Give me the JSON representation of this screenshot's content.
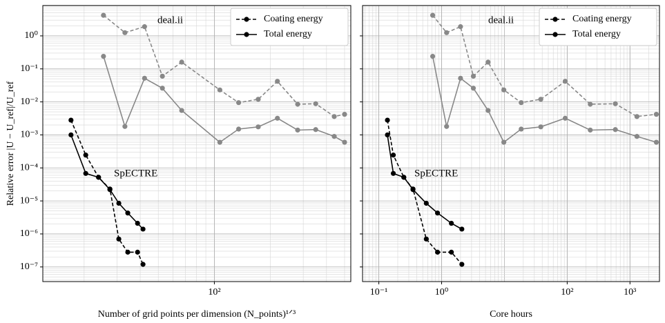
{
  "chart_data": [
    {
      "type": "line",
      "xscale": "log",
      "yscale": "log",
      "grid": true,
      "minor_grid": true,
      "legend": "upper right",
      "xlabel": "Number of grid points per dimension (N_points)¹ᐟ³",
      "ylabel": "Relative error |U − U_ref|/U_ref",
      "xlim": [
        12,
        540
      ],
      "ylim": [
        3.6e-08,
        8.3
      ],
      "xticks": [
        {
          "value": 100,
          "label": "10²"
        }
      ],
      "yticks": [
        {
          "value": 1e-07,
          "label": "10⁻⁷"
        },
        {
          "value": 1e-06,
          "label": "10⁻⁶"
        },
        {
          "value": 1e-05,
          "label": "10⁻⁵"
        },
        {
          "value": 0.0001,
          "label": "10⁻⁴"
        },
        {
          "value": 0.001,
          "label": "10⁻³"
        },
        {
          "value": 0.01,
          "label": "10⁻²"
        },
        {
          "value": 0.1,
          "label": "10⁻¹"
        },
        {
          "value": 1,
          "label": "10⁰"
        }
      ],
      "annotations": [
        "deal.ii",
        "SpECTRE"
      ],
      "series": [
        {
          "color": "#888888",
          "dashed": true,
          "x": [
            25.4,
            33.1,
            42.2,
            52.6,
            66.8,
            107,
            135,
            172,
            218,
            280,
            350,
            440,
            500
          ],
          "values": [
            4.2,
            1.25,
            1.9,
            0.06,
            0.16,
            0.023,
            0.0095,
            0.012,
            0.042,
            0.0085,
            0.0088,
            0.0036,
            0.0042
          ]
        },
        {
          "color": "#888888",
          "dashed": false,
          "x": [
            25.4,
            33.1,
            42.2,
            52.6,
            66.8,
            107,
            135,
            172,
            218,
            280,
            350,
            440,
            500
          ],
          "values": [
            0.24,
            0.0018,
            0.052,
            0.026,
            0.0055,
            0.0006,
            0.0015,
            0.00175,
            0.0032,
            0.0014,
            0.00145,
            0.0009,
            0.0006
          ]
        },
        {
          "name": "Coating energy",
          "color": "#000000",
          "dashed": true,
          "x": [
            17,
            20.4,
            23.9,
            27.5,
            30.7,
            34.3,
            38.7,
            41.4
          ],
          "values": [
            0.0028,
            0.000245,
            5.2e-05,
            2.3e-05,
            7e-07,
            2.8e-07,
            2.8e-07,
            1.2e-07
          ]
        },
        {
          "name": "Total energy",
          "color": "#000000",
          "dashed": false,
          "x": [
            17,
            20.4,
            23.9,
            27.5,
            30.7,
            34.3,
            38.7,
            41.4
          ],
          "values": [
            0.001,
            6.8e-05,
            5.2e-05,
            2.2e-05,
            8.5e-06,
            4.3e-06,
            2.1e-06,
            1.4e-06
          ]
        }
      ]
    },
    {
      "type": "line",
      "xscale": "log",
      "yscale": "log",
      "grid": true,
      "minor_grid": true,
      "legend": "upper right",
      "sharey": true,
      "xlabel": "Core hours",
      "xlim": [
        0.055,
        2950
      ],
      "ylim": [
        3.6e-08,
        8.3
      ],
      "xticks": [
        {
          "value": 0.1,
          "label": "10⁻¹"
        },
        {
          "value": 1,
          "label": "10⁰"
        },
        {
          "value": 100,
          "label": "10²"
        },
        {
          "value": 1000,
          "label": "10³"
        }
      ],
      "annotations": [
        "deal.ii",
        "SpECTRE"
      ],
      "series": [
        {
          "color": "#888888",
          "dashed": true,
          "x": [
            0.72,
            1.2,
            2.0,
            3.2,
            5.5,
            9.8,
            18.5,
            38,
            93,
            233,
            585,
            1290,
            2630
          ],
          "values": [
            4.2,
            1.25,
            1.9,
            0.06,
            0.16,
            0.023,
            0.0095,
            0.012,
            0.042,
            0.0085,
            0.0088,
            0.0036,
            0.0042
          ]
        },
        {
          "color": "#888888",
          "dashed": false,
          "x": [
            0.72,
            1.2,
            2.0,
            3.2,
            5.5,
            9.8,
            18.5,
            38,
            93,
            233,
            585,
            1290,
            2630
          ],
          "values": [
            0.24,
            0.0018,
            0.052,
            0.026,
            0.0055,
            0.0006,
            0.0015,
            0.00175,
            0.0032,
            0.0014,
            0.00145,
            0.0009,
            0.0006
          ]
        },
        {
          "name": "Coating energy",
          "color": "#000000",
          "dashed": true,
          "x": [
            0.137,
            0.17,
            0.25,
            0.35,
            0.57,
            0.86,
            1.43,
            2.1
          ],
          "values": [
            0.0028,
            0.000245,
            5.2e-05,
            2.3e-05,
            7e-07,
            2.8e-07,
            2.8e-07,
            1.2e-07
          ]
        },
        {
          "name": "Total energy",
          "color": "#000000",
          "dashed": false,
          "x": [
            0.137,
            0.17,
            0.25,
            0.35,
            0.57,
            0.86,
            1.43,
            2.1
          ],
          "values": [
            0.001,
            6.8e-05,
            5.2e-05,
            2.2e-05,
            8.5e-06,
            4.3e-06,
            2.1e-06,
            1.4e-06
          ]
        }
      ]
    }
  ]
}
